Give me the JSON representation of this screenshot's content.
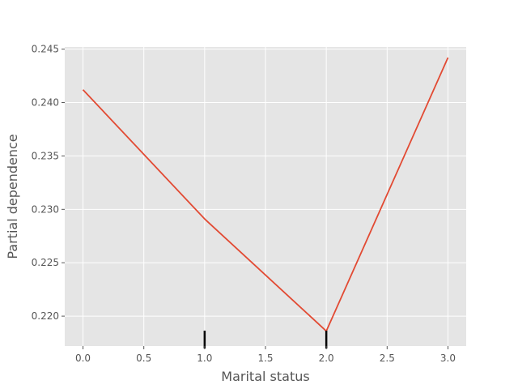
{
  "chart_data": {
    "type": "line",
    "title": "",
    "xlabel": "Marital status",
    "ylabel": "Partial dependence",
    "xlim": [
      -0.15,
      3.15
    ],
    "ylim": [
      0.2172,
      0.2452
    ],
    "grid": true,
    "x_ticks": [
      0.0,
      0.5,
      1.0,
      1.5,
      2.0,
      2.5,
      3.0
    ],
    "x_tick_labels": [
      "0.0",
      "0.5",
      "1.0",
      "1.5",
      "2.0",
      "2.5",
      "3.0"
    ],
    "y_ticks": [
      0.22,
      0.225,
      0.23,
      0.235,
      0.24,
      0.245
    ],
    "y_tick_labels": [
      "0.220",
      "0.225",
      "0.230",
      "0.235",
      "0.240",
      "0.245"
    ],
    "series": [
      {
        "x": [
          0.0,
          1.0,
          2.0,
          3.0
        ],
        "values": [
          0.2412,
          0.2291,
          0.2186,
          0.2442
        ]
      }
    ],
    "rug_marks": [
      1.0,
      2.0
    ],
    "colors": {
      "background": "#E5E5E5",
      "grid": "#FFFFFF",
      "line": "#E24A33",
      "text": "#555555",
      "rug": "#000000"
    }
  }
}
